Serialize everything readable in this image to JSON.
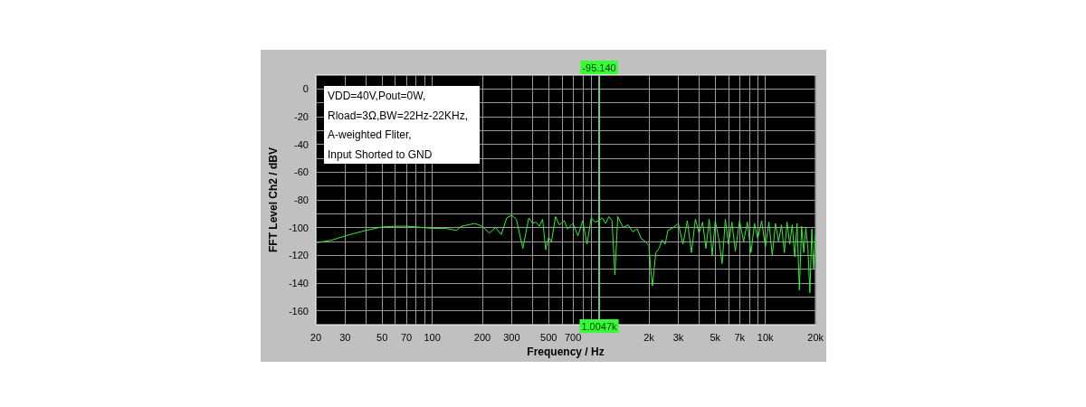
{
  "chart_data": {
    "type": "line",
    "xlabel": "Frequency / Hz",
    "ylabel": "FFT Level Ch2 / dBV",
    "log": "x",
    "grid": true,
    "marker": "none",
    "xlim": [
      20,
      20000
    ],
    "xticks": [
      20,
      30,
      {
        "value": 40,
        "label": null
      },
      50,
      {
        "value": 60,
        "label": null
      },
      70,
      {
        "value": 80,
        "label": null
      },
      {
        "value": 90,
        "label": null
      },
      100,
      200,
      300,
      {
        "value": 400,
        "label": null
      },
      500,
      {
        "value": 600,
        "label": null
      },
      700,
      {
        "value": 800,
        "label": null
      },
      {
        "value": 900,
        "label": null
      },
      {
        "value": 1000,
        "label": null
      },
      {
        "value": 2000,
        "label": "2k"
      },
      {
        "value": 3000,
        "label": "3k"
      },
      {
        "value": 4000,
        "label": null
      },
      {
        "value": 5000,
        "label": "5k"
      },
      {
        "value": 6000,
        "label": null
      },
      {
        "value": 7000,
        "label": "7k"
      },
      {
        "value": 8000,
        "label": null
      },
      {
        "value": 9000,
        "label": null
      },
      {
        "value": 10000,
        "label": "10k"
      },
      {
        "value": 20000,
        "label": "20k"
      }
    ],
    "ylim": [
      -170,
      10
    ],
    "yticks": [
      0,
      {
        "value": -10,
        "label": null
      },
      -20,
      {
        "value": -30,
        "label": null
      },
      -40,
      {
        "value": -50,
        "label": null
      },
      -60,
      {
        "value": -70,
        "label": null
      },
      -80,
      {
        "value": -90,
        "label": null
      },
      -100,
      {
        "value": -110,
        "label": null
      },
      -120,
      {
        "value": -130,
        "label": null
      },
      -140,
      {
        "value": -150,
        "label": null
      },
      -160
    ],
    "ref_lines": [
      {
        "axis": "x",
        "value": 1004.7,
        "label": "1.0047k",
        "color": "#33ff33"
      }
    ],
    "annotations": [
      "VDD=40V,Pout=0W,",
      "Rload=3Ω,BW=22Hz-22KHz,",
      "A-weighted Fliter,",
      "Input Shorted to GND",
      "-95.140"
    ],
    "series": [
      {
        "color": "#33ee33",
        "x": [
          20,
          25,
          30,
          40,
          50,
          60,
          70,
          80,
          100,
          120,
          140,
          150,
          180,
          200,
          220,
          240,
          260,
          280,
          300,
          320,
          350,
          380,
          400,
          420,
          440,
          460,
          480,
          500,
          520,
          550,
          580,
          620,
          650,
          700,
          750,
          800,
          850,
          900,
          950,
          1000,
          1050,
          1100,
          1150,
          1200,
          1250,
          1300,
          1400,
          1500,
          1600,
          1700,
          1800,
          1900,
          2000,
          2050,
          2100,
          2200,
          2300,
          2400,
          2500,
          2600,
          2800,
          3000,
          3200,
          3400,
          3600,
          3800,
          4000,
          4200,
          4400,
          4600,
          4800,
          5000,
          5250,
          5500,
          5750,
          6000,
          6300,
          6600,
          7000,
          7400,
          7800,
          8200,
          8600,
          9000,
          9500,
          10000,
          10500,
          11000,
          11500,
          12000,
          12500,
          13000,
          13500,
          14000,
          14500,
          15000,
          15500,
          16000,
          16500,
          17000,
          17500,
          18000,
          18500,
          19000,
          19500,
          20000
        ],
        "values": [
          -111,
          -109,
          -106,
          -102,
          -99.5,
          -99,
          -99,
          -99.5,
          -100.5,
          -100.5,
          -102,
          -99,
          -97,
          -99,
          -104,
          -100,
          -105,
          -93,
          -91,
          -94,
          -115,
          -93,
          -97,
          -96,
          -99,
          -94,
          -116,
          -107,
          -110,
          -92,
          -98,
          -95,
          -101,
          -97,
          -106,
          -95,
          -112,
          -93,
          -96,
          -95,
          -93,
          -97,
          -92,
          -95,
          -134,
          -92,
          -100,
          -98,
          -103,
          -101,
          -108,
          -110,
          -113,
          -130,
          -142,
          -118,
          -115,
          -109,
          -112,
          -102,
          -100,
          -97,
          -112,
          -95,
          -118,
          -94,
          -104,
          -96,
          -115,
          -94,
          -120,
          -95,
          -108,
          -126,
          -94,
          -112,
          -96,
          -117,
          -95,
          -110,
          -96,
          -118,
          -97,
          -108,
          -95,
          -114,
          -96,
          -120,
          -97,
          -110,
          -98,
          -118,
          -96,
          -112,
          -98,
          -121,
          -97,
          -145,
          -99,
          -118,
          -100,
          -115,
          -147,
          -101,
          -130,
          -105
        ]
      }
    ]
  }
}
